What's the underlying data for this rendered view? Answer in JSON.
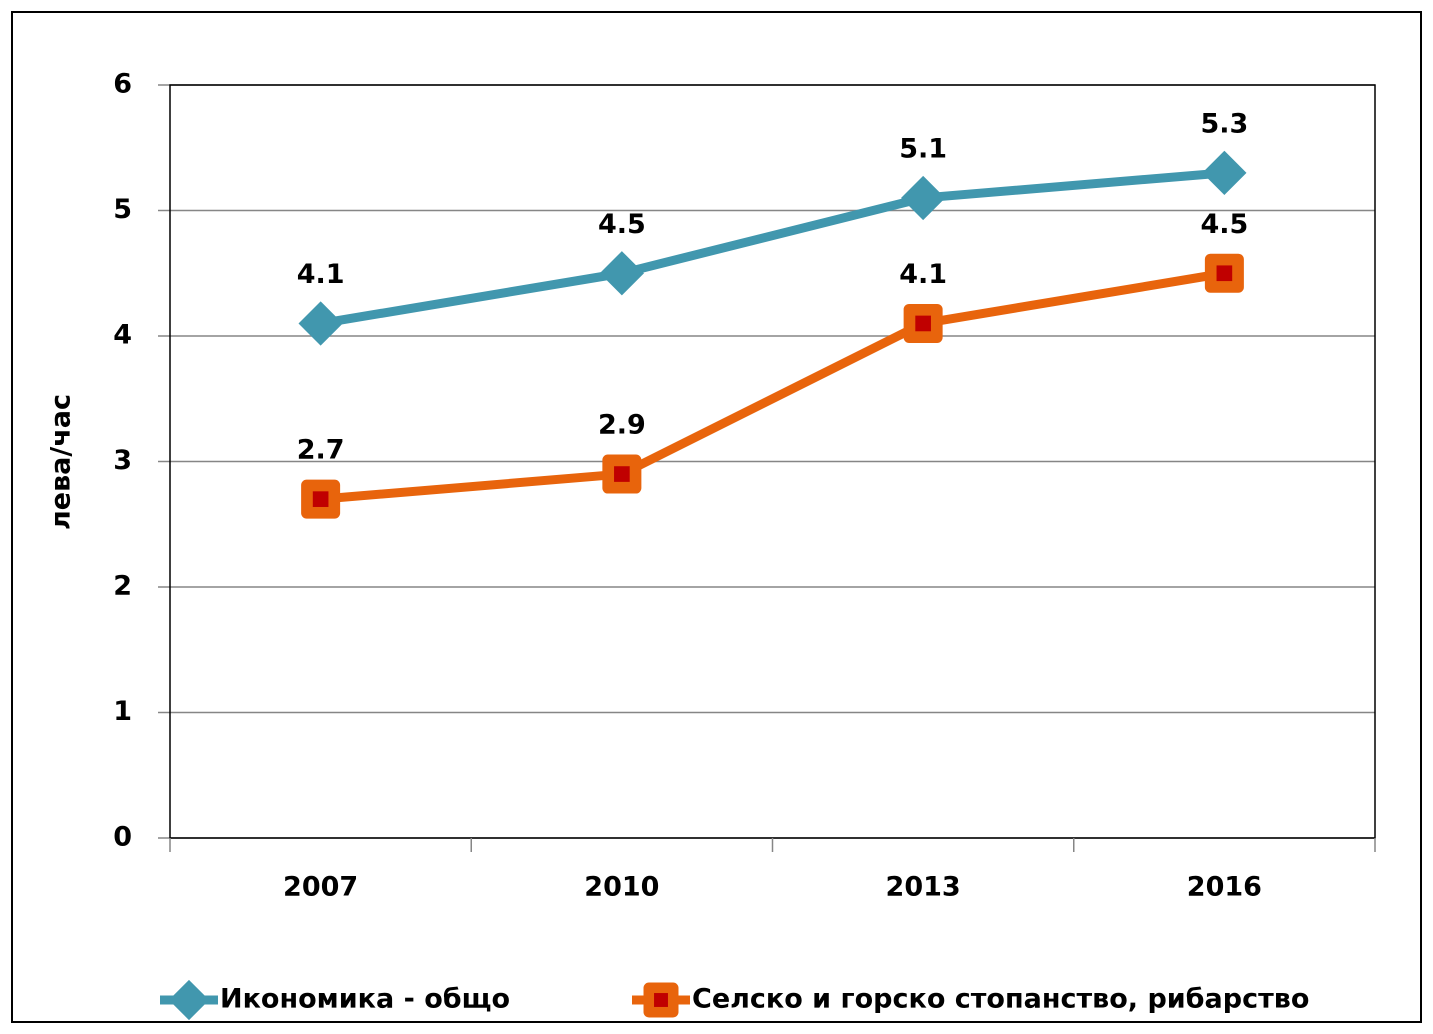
{
  "chart_data": {
    "type": "line",
    "categories": [
      "2007",
      "2010",
      "2013",
      "2016"
    ],
    "series": [
      {
        "name": "Икономика - общо",
        "color": "#4197ae",
        "marker": "diamond",
        "values": [
          4.1,
          4.5,
          5.1,
          5.3
        ]
      },
      {
        "name": "Селско и горско стопанство, рибарство",
        "color": "#e8640c",
        "marker": "square",
        "marker_center_color": "#c00000",
        "values": [
          2.7,
          2.9,
          4.1,
          4.5
        ]
      }
    ],
    "y_label": "лева/час",
    "ylim": [
      0,
      6
    ],
    "yticks": [
      0,
      1,
      2,
      3,
      4,
      5,
      6
    ],
    "grid": true,
    "legend": "bottom"
  }
}
